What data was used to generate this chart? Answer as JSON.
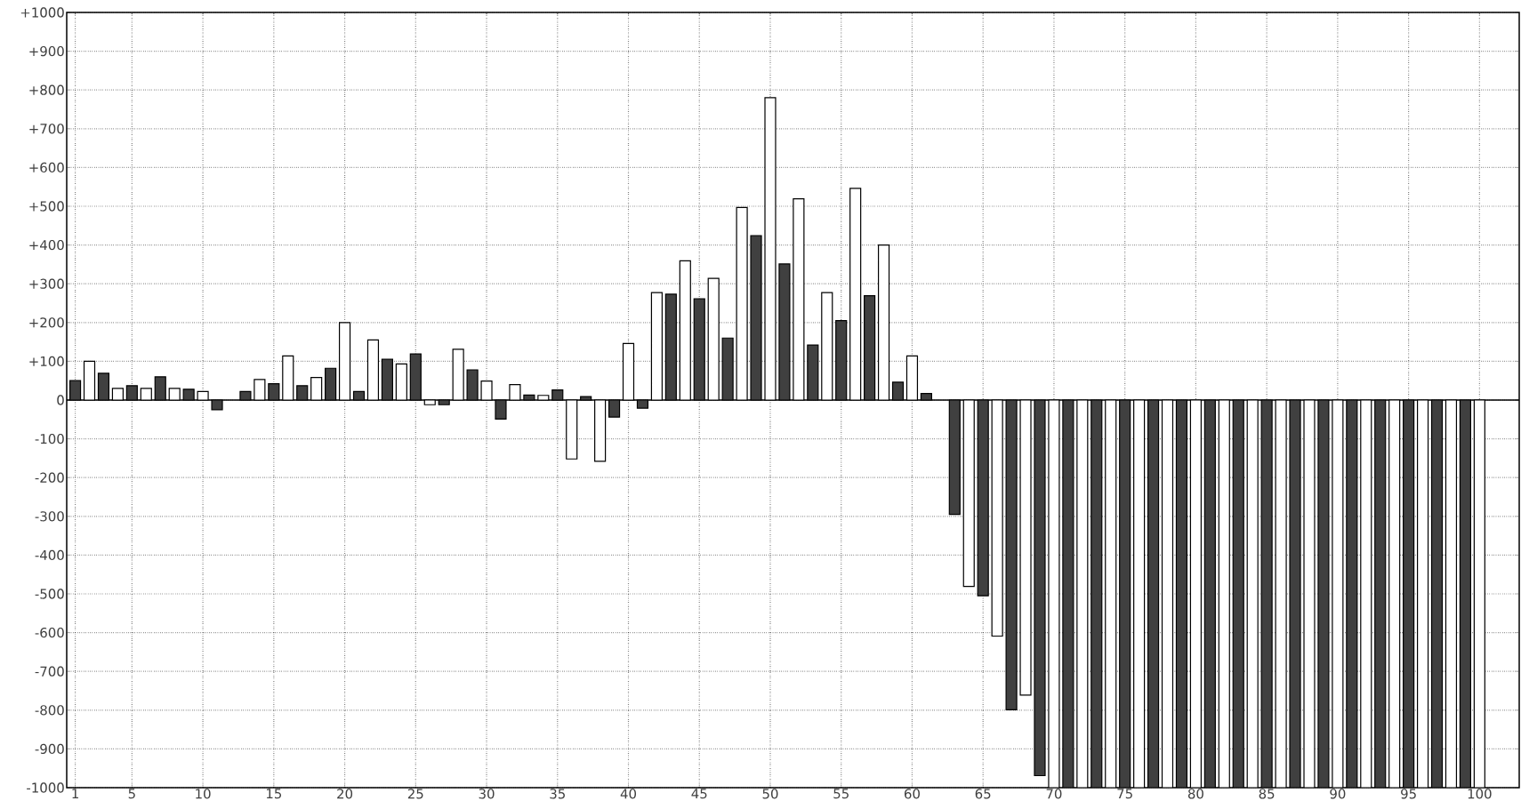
{
  "chart_data": {
    "type": "bar",
    "xlim": [
      0.4,
      102.8
    ],
    "ylim": [
      -1000,
      1000
    ],
    "xticks": [
      1,
      5,
      10,
      15,
      20,
      25,
      30,
      35,
      40,
      45,
      50,
      55,
      60,
      65,
      70,
      75,
      80,
      85,
      90,
      95,
      100
    ],
    "yticks": [
      -1000,
      -900,
      -800,
      -700,
      -600,
      -500,
      -400,
      -300,
      -200,
      -100,
      0,
      {
        "value": 100,
        "label": "+100"
      },
      {
        "value": 200,
        "label": "+200"
      },
      {
        "value": 300,
        "label": "+300"
      },
      {
        "value": 400,
        "label": "+400"
      },
      {
        "value": 500,
        "label": "+500"
      },
      {
        "value": 600,
        "label": "+600"
      },
      {
        "value": 700,
        "label": "+700"
      },
      {
        "value": 800,
        "label": "+800"
      },
      {
        "value": 900,
        "label": "+900"
      },
      {
        "value": 1000,
        "label": "+1000"
      }
    ],
    "grid": true,
    "series": [
      {
        "color": "#404040",
        "x": [
          1,
          3,
          5,
          7,
          9,
          11,
          13,
          15,
          17,
          19,
          21,
          23,
          25,
          27,
          29,
          31,
          33,
          35,
          37,
          39,
          41,
          43,
          45,
          47,
          49,
          51,
          53,
          55,
          57,
          59,
          61,
          63,
          65,
          67,
          69,
          71,
          73,
          75,
          77,
          79,
          81,
          83,
          85,
          87,
          89,
          91,
          93,
          95,
          97,
          99
        ],
        "values": [
          50,
          69,
          37,
          60,
          28,
          -25,
          22,
          42,
          37,
          82,
          22,
          105,
          119,
          -12,
          78,
          -49,
          13,
          26,
          9,
          -44,
          -21,
          273,
          261,
          160,
          424,
          351,
          142,
          205,
          269,
          46,
          17,
          -295,
          -505,
          -799,
          -969,
          -1000,
          -1000,
          -1000,
          -1000,
          -1000,
          -1000,
          -1000,
          -1000,
          -1000,
          -1000,
          -1000,
          -1000,
          -1000,
          -1000,
          -1000
        ]
      },
      {
        "color": "#ffffff",
        "x": [
          2,
          4,
          6,
          8,
          10,
          12,
          14,
          16,
          18,
          20,
          22,
          24,
          26,
          28,
          30,
          32,
          34,
          36,
          38,
          40,
          42,
          44,
          46,
          48,
          50,
          52,
          54,
          56,
          58,
          60,
          62,
          64,
          66,
          68,
          70,
          72,
          74,
          76,
          78,
          80,
          82,
          84,
          86,
          88,
          90,
          92,
          94,
          96,
          98,
          100
        ],
        "values": [
          100,
          30,
          30,
          30,
          22,
          null,
          53,
          114,
          58,
          200,
          155,
          93,
          -12,
          131,
          49,
          40,
          12,
          -152,
          -158,
          146,
          277,
          359,
          314,
          497,
          780,
          519,
          277,
          546,
          400,
          114,
          null,
          -481,
          -609,
          -761,
          -1000,
          -1000,
          -1000,
          -1000,
          -1000,
          -1000,
          -1000,
          -1000,
          -1000,
          -1000,
          -1000,
          -1000,
          -1000,
          -1000,
          -1000,
          -1000
        ]
      }
    ]
  }
}
